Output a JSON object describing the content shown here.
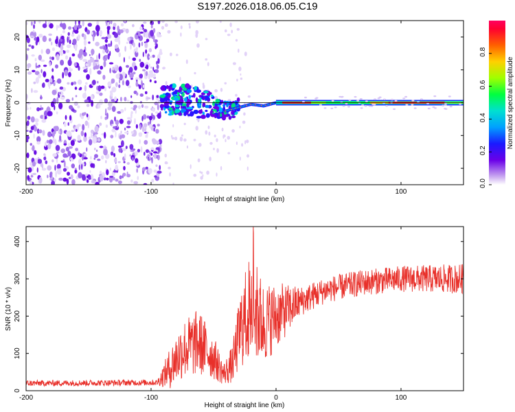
{
  "title": "S197.2026.018.06.05.C19",
  "chart_data": [
    {
      "type": "heatmap",
      "name": "spectrogram",
      "xlabel": "Height of straight line (km)",
      "ylabel": "Frequency (Hz)",
      "xlim": [
        -200,
        150
      ],
      "ylim": [
        -25,
        25
      ],
      "xticks": [
        -200,
        -100,
        0,
        100
      ],
      "yticks": [
        -20,
        -10,
        0,
        10,
        20
      ],
      "colorbar": {
        "label": "Normalized spectral amplitude",
        "range": [
          0.0,
          1.0
        ],
        "ticks": [
          "0.0",
          "0.2",
          "0.4",
          "0.6",
          "0.8"
        ]
      },
      "noise_region": [
        -200,
        -92
      ],
      "signal_start": -92,
      "center_trace": [
        {
          "x": -92,
          "f": 0.5
        },
        {
          "x": -80,
          "f": 1.0
        },
        {
          "x": -65,
          "f": 0.5
        },
        {
          "x": -50,
          "f": -1.5
        },
        {
          "x": -40,
          "f": -2.5
        },
        {
          "x": -30,
          "f": -1.5
        },
        {
          "x": -20,
          "f": -0.5
        },
        {
          "x": -10,
          "f": -1.0
        },
        {
          "x": 0,
          "f": 0.0
        },
        {
          "x": 10,
          "f": 0.0
        },
        {
          "x": 150,
          "f": 0.0
        }
      ]
    },
    {
      "type": "line",
      "name": "snr",
      "xlabel": "Height of straight line (km)",
      "ylabel": "SNR (10 * v/v)",
      "xlim": [
        -200,
        150
      ],
      "ylim": [
        0,
        440
      ],
      "xticks": [
        -200,
        -100,
        0,
        100
      ],
      "yticks": [
        0,
        100,
        200,
        300,
        400
      ],
      "color": "#e8302a",
      "envelope": [
        {
          "x": -200,
          "base": 20,
          "noise": 8
        },
        {
          "x": -95,
          "base": 22,
          "noise": 8
        },
        {
          "x": -85,
          "base": 60,
          "noise": 55
        },
        {
          "x": -75,
          "base": 110,
          "noise": 80
        },
        {
          "x": -62,
          "base": 130,
          "noise": 90
        },
        {
          "x": -50,
          "base": 90,
          "noise": 60
        },
        {
          "x": -42,
          "base": 45,
          "noise": 30
        },
        {
          "x": -35,
          "base": 70,
          "noise": 50
        },
        {
          "x": -28,
          "base": 170,
          "noise": 110
        },
        {
          "x": -20,
          "base": 230,
          "noise": 150
        },
        {
          "x": -10,
          "base": 180,
          "noise": 110
        },
        {
          "x": 0,
          "base": 200,
          "noise": 90
        },
        {
          "x": 20,
          "base": 240,
          "noise": 40
        },
        {
          "x": 40,
          "base": 270,
          "noise": 35
        },
        {
          "x": 70,
          "base": 290,
          "noise": 35
        },
        {
          "x": 100,
          "base": 300,
          "noise": 35
        },
        {
          "x": 150,
          "base": 300,
          "noise": 40
        }
      ]
    }
  ]
}
